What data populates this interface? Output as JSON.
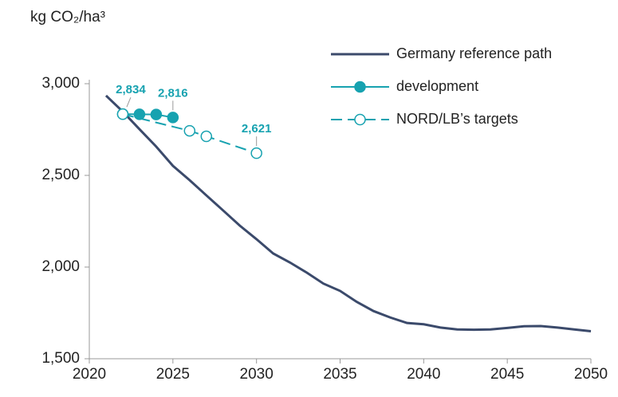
{
  "chart_data": {
    "type": "line",
    "y_label": "kg CO₂/ha³",
    "xlim": [
      2020,
      2050
    ],
    "xticks": [
      2020,
      2025,
      2030,
      2035,
      2040,
      2045,
      2050
    ],
    "ylim": [
      1500,
      3000
    ],
    "yticks": [
      {
        "value": 1500,
        "label": "1,500"
      },
      {
        "value": 2000,
        "label": "2,000"
      },
      {
        "value": 2500,
        "label": "2,500"
      },
      {
        "value": 3000,
        "label": "3,000"
      }
    ],
    "legend": "top-right",
    "series": [
      {
        "name": "Germany reference path",
        "color": "#3b4a6b",
        "style": "solid",
        "marker": "none",
        "x": [
          2021,
          2022,
          2023,
          2024,
          2025,
          2026,
          2027,
          2028,
          2029,
          2030,
          2031,
          2032,
          2033,
          2034,
          2035,
          2036,
          2037,
          2038,
          2039,
          2040,
          2041,
          2042,
          2043,
          2044,
          2045,
          2046,
          2047,
          2048,
          2049,
          2050
        ],
        "values": [
          2935,
          2848,
          2752,
          2657,
          2552,
          2474,
          2391,
          2309,
          2226,
          2152,
          2074,
          2025,
          1970,
          1910,
          1870,
          1810,
          1760,
          1725,
          1695,
          1688,
          1670,
          1660,
          1658,
          1660,
          1668,
          1677,
          1678,
          1670,
          1660,
          1650
        ]
      },
      {
        "name": "development",
        "color": "#17a2b0",
        "style": "solid",
        "marker": "filled",
        "x": [
          2022,
          2023,
          2024,
          2025
        ],
        "values": [
          2834,
          2833,
          2832,
          2816
        ],
        "value_labels": [
          "2,834",
          null,
          null,
          "2,816"
        ]
      },
      {
        "name": "NORD/LB’s targets",
        "color": "#17a2b0",
        "style": "dashed",
        "marker": "open",
        "x": [
          2022,
          2026,
          2027,
          2030
        ],
        "values": [
          2834,
          2743,
          2713,
          2621
        ],
        "value_labels": [
          null,
          null,
          null,
          "2,621"
        ]
      }
    ]
  }
}
